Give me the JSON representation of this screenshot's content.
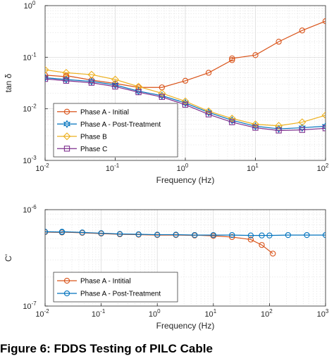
{
  "caption": "Figure 6: FDDS Testing of PILC Cable",
  "colors": {
    "phase_a_initial": "#d95319",
    "phase_a_post": "#0072bd",
    "phase_b": "#edb120",
    "phase_c": "#7e2f8e"
  },
  "chart_data": [
    {
      "type": "line",
      "xlabel": "Frequency (Hz)",
      "ylabel": "tan δ",
      "xscale": "log",
      "yscale": "log",
      "xlim": [
        0.01,
        100
      ],
      "ylim": [
        0.001,
        1
      ],
      "grid": true,
      "legend_position": "bottom-left",
      "x_ticks": [
        "10",
        "10",
        "10",
        "10",
        "10"
      ],
      "x_tick_exponents": [
        "-2",
        "-1",
        "0",
        "1",
        "2"
      ],
      "y_ticks": [
        "10",
        "10",
        "10",
        "10"
      ],
      "y_tick_exponents": [
        "-3",
        "-2",
        "-1",
        "0"
      ],
      "series": [
        {
          "name": "Phase A - Initial",
          "color": "#d95319",
          "marker": "circle",
          "x": [
            0.01,
            0.02,
            0.02,
            0.046,
            0.1,
            0.215,
            0.464,
            1,
            2.15,
            4.64,
            4.64,
            10,
            21.5,
            46.4,
            100
          ],
          "y": [
            0.045,
            0.042,
            0.044,
            0.036,
            0.031,
            0.026,
            0.026,
            0.035,
            0.05,
            0.088,
            0.095,
            0.11,
            0.2,
            0.33,
            0.5
          ]
        },
        {
          "name": "Phase A - Post-Treatment",
          "color": "#0072bd",
          "marker": "hexagram",
          "x": [
            0.01,
            0.02,
            0.046,
            0.1,
            0.215,
            0.464,
            1,
            2.15,
            4.64,
            10,
            21.5,
            46.4,
            100
          ],
          "y": [
            0.04,
            0.037,
            0.034,
            0.029,
            0.022,
            0.018,
            0.013,
            0.0085,
            0.006,
            0.0046,
            0.0041,
            0.0043,
            0.0046
          ]
        },
        {
          "name": "Phase B",
          "color": "#edb120",
          "marker": "diamond",
          "x": [
            0.01,
            0.02,
            0.046,
            0.1,
            0.215,
            0.464,
            1,
            2.15,
            4.64,
            10,
            21.5,
            46.4,
            100
          ],
          "y": [
            0.057,
            0.05,
            0.046,
            0.037,
            0.027,
            0.02,
            0.014,
            0.009,
            0.0065,
            0.005,
            0.0047,
            0.0055,
            0.0075
          ]
        },
        {
          "name": "Phase C",
          "color": "#7e2f8e",
          "marker": "square",
          "x": [
            0.01,
            0.02,
            0.046,
            0.1,
            0.215,
            0.464,
            1,
            2.15,
            4.64,
            10,
            21.5,
            46.4,
            100
          ],
          "y": [
            0.038,
            0.035,
            0.032,
            0.027,
            0.021,
            0.017,
            0.012,
            0.0078,
            0.0055,
            0.0043,
            0.0038,
            0.0039,
            0.0042
          ]
        }
      ]
    },
    {
      "type": "line",
      "xlabel": "Frequency (Hz)",
      "ylabel": "C'",
      "xscale": "log",
      "yscale": "log",
      "xlim": [
        0.01,
        1000
      ],
      "ylim": [
        1e-07,
        1e-06
      ],
      "grid": true,
      "legend_position": "bottom-left",
      "x_ticks": [
        "10",
        "10",
        "10",
        "10",
        "10",
        "10"
      ],
      "x_tick_exponents": [
        "-2",
        "-1",
        "0",
        "1",
        "2",
        "3"
      ],
      "y_ticks": [
        "10",
        "10"
      ],
      "y_tick_exponents": [
        "-7",
        "-6"
      ],
      "series": [
        {
          "name": "Phase A - Intitial",
          "color": "#d95319",
          "marker": "circle",
          "x": [
            0.01,
            0.02,
            0.02,
            0.046,
            0.1,
            0.215,
            0.464,
            1,
            2.15,
            4.64,
            4.64,
            10,
            21.5,
            46.4,
            73,
            115
          ],
          "y": [
            5.85e-07,
            5.8e-07,
            5.85e-07,
            5.75e-07,
            5.65e-07,
            5.55e-07,
            5.5e-07,
            5.45e-07,
            5.45e-07,
            5.4e-07,
            5.45e-07,
            5.35e-07,
            5.2e-07,
            4.9e-07,
            4.3e-07,
            3.5e-07
          ]
        },
        {
          "name": "Phase A - Post-Treatment",
          "color": "#0072bd",
          "marker": "circle",
          "x": [
            0.01,
            0.02,
            0.02,
            0.046,
            0.1,
            0.215,
            0.464,
            1,
            2.15,
            4.64,
            10,
            21.5,
            46.4,
            73,
            100,
            215,
            464,
            1000
          ],
          "y": [
            5.9e-07,
            5.85e-07,
            5.9e-07,
            5.8e-07,
            5.7e-07,
            5.6e-07,
            5.55e-07,
            5.5e-07,
            5.5e-07,
            5.45e-07,
            5.45e-07,
            5.45e-07,
            5.4e-07,
            5.4e-07,
            5.4e-07,
            5.45e-07,
            5.45e-07,
            5.45e-07
          ]
        }
      ]
    }
  ]
}
